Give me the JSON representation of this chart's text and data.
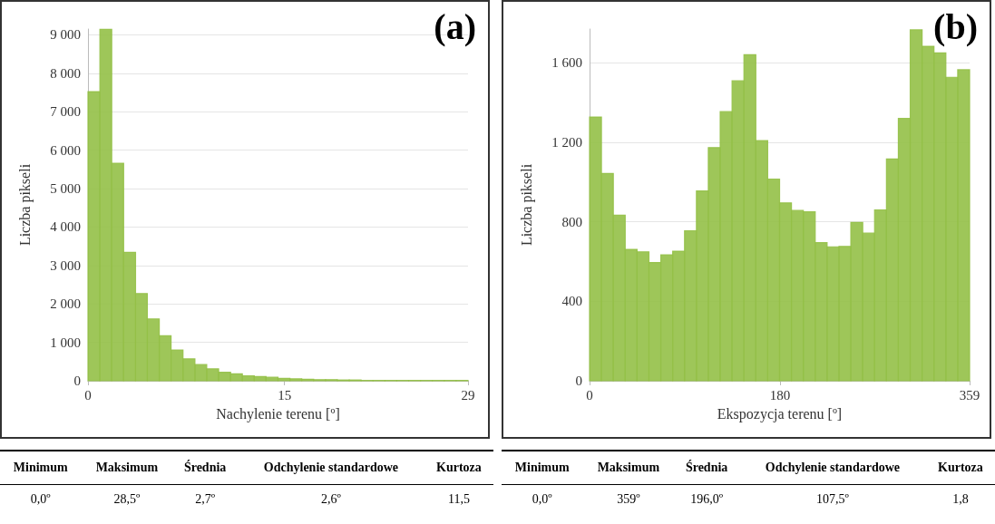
{
  "chart_data": [
    {
      "type": "histogram",
      "title": "(a)",
      "xlabel": "Nachylenie terenu [º]",
      "ylabel": "Liczba pikseli",
      "color": "#93c047",
      "grid": "y",
      "bins": [
        0,
        0.91,
        1.81,
        2.72,
        3.63,
        4.53,
        5.44,
        6.34,
        7.25,
        8.16,
        9.06,
        9.97,
        10.88,
        11.78,
        12.69,
        13.59,
        14.5,
        15.41,
        16.31,
        17.22,
        18.13,
        19.03,
        19.94,
        20.84,
        21.75,
        22.66,
        23.56,
        24.47,
        25.38,
        26.28,
        27.19,
        28.09,
        29
      ],
      "values": [
        7520,
        9140,
        5660,
        3340,
        2270,
        1610,
        1170,
        800,
        570,
        420,
        310,
        220,
        180,
        130,
        110,
        90,
        60,
        50,
        40,
        30,
        30,
        20,
        20,
        10,
        10,
        10,
        10,
        10,
        10,
        10,
        10,
        10
      ],
      "xlim": [
        0,
        29
      ],
      "xticks": [
        0,
        15,
        29
      ],
      "ylim": [
        0,
        9150
      ],
      "yticks": [
        0,
        {
          "value": 1000,
          "label": "1 000"
        },
        {
          "value": 2000,
          "label": "2 000"
        },
        {
          "value": 3000,
          "label": "3 000"
        },
        {
          "value": 4000,
          "label": "4 000"
        },
        {
          "value": 5000,
          "label": "5 000"
        },
        {
          "value": 6000,
          "label": "6 000"
        },
        {
          "value": 7000,
          "label": "7 000"
        },
        {
          "value": 8000,
          "label": "8 000"
        },
        {
          "value": 9000,
          "label": "9 000"
        }
      ],
      "annotations": [
        "Minimum",
        "Maksimum",
        "Średnia",
        "Odchylenie standardowe",
        "Kurtoza",
        "0,0º",
        "28,5º",
        "2,7º",
        "2,6º",
        "11,5"
      ]
    },
    {
      "type": "histogram",
      "title": "(b)",
      "xlabel": "Ekspozycja terenu [º]",
      "ylabel": "Liczba pikseli",
      "color": "#93c047",
      "grid": "y",
      "bins": [
        0,
        11.22,
        22.44,
        33.66,
        44.88,
        56.1,
        67.31,
        78.53,
        89.75,
        100.97,
        112.19,
        123.41,
        134.63,
        145.84,
        157.06,
        168.28,
        179.5,
        190.72,
        201.94,
        213.16,
        224.38,
        235.59,
        246.81,
        258.03,
        269.25,
        280.47,
        291.69,
        302.91,
        314.13,
        325.34,
        336.56,
        347.78,
        359
      ],
      "values": [
        1327,
        1043,
        833,
        661,
        649,
        595,
        634,
        652,
        755,
        955,
        1173,
        1354,
        1509,
        1641,
        1209,
        1015,
        895,
        857,
        850,
        695,
        674,
        676,
        797,
        743,
        860,
        1116,
        1320,
        1766,
        1683,
        1650,
        1527,
        1565
      ],
      "xlim": [
        0,
        359
      ],
      "xticks": [
        0,
        180,
        359
      ],
      "ylim": [
        0,
        1770
      ],
      "yticks": [
        0,
        400,
        800,
        {
          "value": 1200,
          "label": "1 200"
        },
        {
          "value": 1600,
          "label": "1 600"
        }
      ],
      "annotations": [
        "Minimum",
        "Maksimum",
        "Średnia",
        "Odchylenie standardowe",
        "Kurtoza",
        "0,0º",
        "359º",
        "196,0º",
        "107,5º",
        "1,8"
      ]
    }
  ]
}
